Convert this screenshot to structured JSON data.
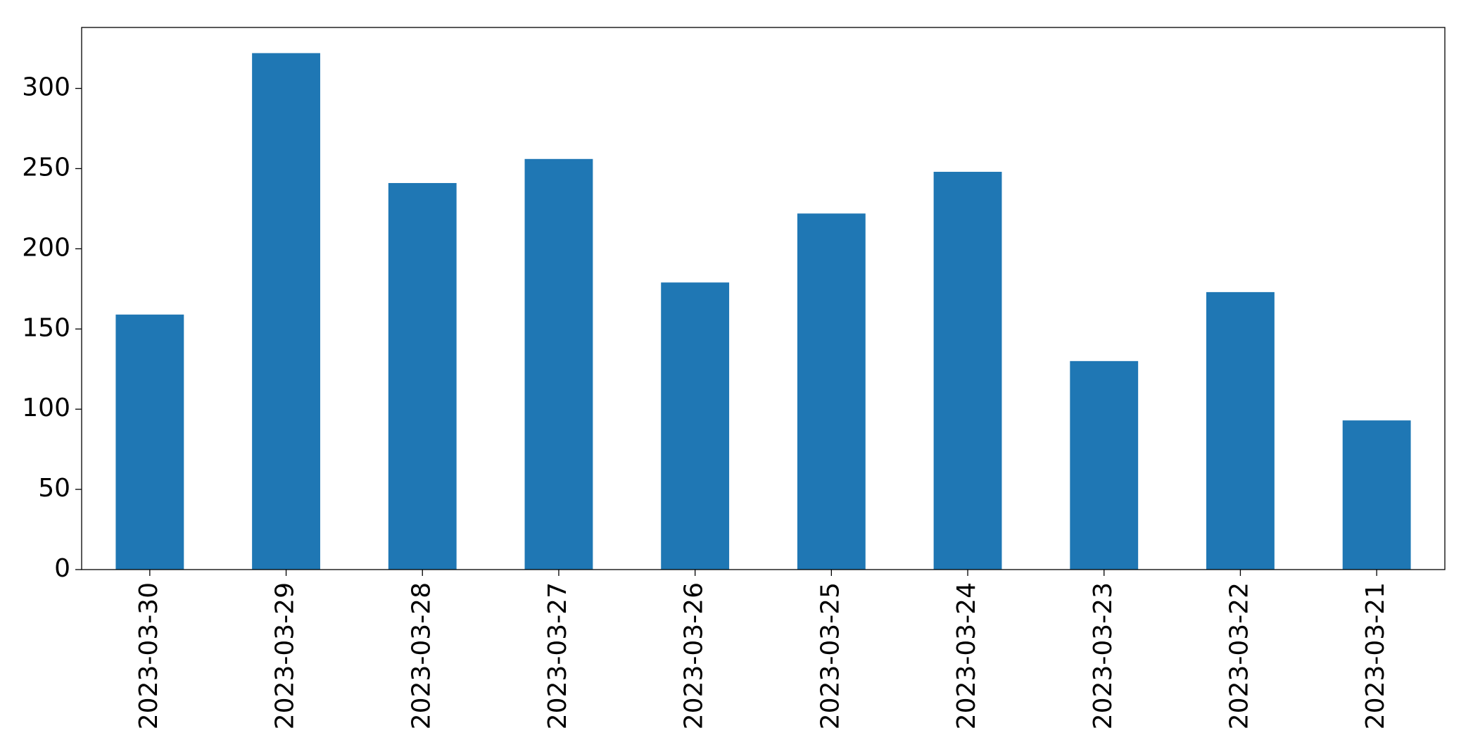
{
  "chart_data": {
    "type": "bar",
    "categories": [
      "2023-03-30",
      "2023-03-29",
      "2023-03-28",
      "2023-03-27",
      "2023-03-26",
      "2023-03-25",
      "2023-03-24",
      "2023-03-23",
      "2023-03-22",
      "2023-03-21"
    ],
    "values": [
      159,
      322,
      241,
      256,
      179,
      222,
      248,
      130,
      173,
      93
    ],
    "color": "#1f77b4",
    "ylim": [
      0,
      338
    ],
    "yticks": [
      0,
      50,
      100,
      150,
      200,
      250,
      300
    ],
    "grid": false
  }
}
